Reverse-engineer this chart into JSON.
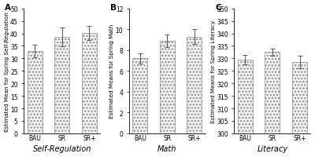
{
  "panels": [
    {
      "label": "A",
      "title": "Self-Regulation",
      "ylabel": "Estimated Mean for Spring Self-Regulation",
      "categories": [
        "BAU",
        "SR",
        "SR+"
      ],
      "values": [
        33.0,
        38.5,
        40.2
      ],
      "errors": [
        2.5,
        3.8,
        2.8
      ],
      "ylim": [
        0,
        50
      ],
      "yticks": [
        0,
        5,
        10,
        15,
        20,
        25,
        30,
        35,
        40,
        45,
        50
      ]
    },
    {
      "label": "B",
      "title": "Math",
      "ylabel": "Estimated Means for Spring Math",
      "categories": [
        "BAU",
        "SR",
        "SR+"
      ],
      "values": [
        7.2,
        8.9,
        9.3
      ],
      "errors": [
        0.5,
        0.6,
        0.7
      ],
      "ylim": [
        0,
        12
      ],
      "yticks": [
        0,
        2,
        4,
        6,
        8,
        10,
        12
      ]
    },
    {
      "label": "C",
      "title": "Literacy",
      "ylabel": "Estimated Means for Spring Literacy",
      "categories": [
        "BAU",
        "SR",
        "SR+"
      ],
      "values": [
        329.5,
        332.5,
        328.5
      ],
      "errors": [
        1.8,
        1.5,
        2.5
      ],
      "ylim": [
        300,
        350
      ],
      "yticks": [
        300,
        305,
        310,
        315,
        320,
        325,
        330,
        335,
        340,
        345,
        350
      ]
    }
  ],
  "bar_color": "#f0f0f0",
  "bar_edgecolor": "#888888",
  "errorbar_color": "#555555",
  "background_color": "#ffffff",
  "tick_fontsize": 5.5,
  "ylabel_fontsize": 5.2,
  "title_fontsize": 7,
  "panel_label_fontsize": 7.5
}
